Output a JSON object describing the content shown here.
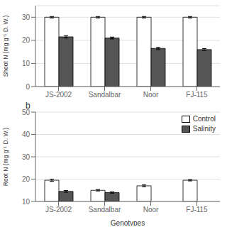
{
  "chart_data": [
    {
      "type": "bar",
      "categories": [
        "JS-2002",
        "Sandalbar",
        "Noor",
        "FJ-115"
      ],
      "series": [
        {
          "name": "Control",
          "color": "#ffffff",
          "values": [
            30,
            30,
            30,
            30
          ],
          "errors": [
            0.3,
            0.3,
            0.3,
            0.3
          ]
        },
        {
          "name": "Salinity",
          "color": "#555555",
          "values": [
            21.5,
            21.0,
            16.5,
            16.0
          ],
          "errors": [
            0.5,
            0.4,
            0.5,
            0.4
          ]
        }
      ],
      "ylabel": "Shoot N (mg g⁻¹ D. W.)",
      "ylim": [
        0,
        35
      ],
      "yticks": [
        0,
        10,
        20,
        30
      ],
      "grid": true
    },
    {
      "type": "bar",
      "categories": [
        "JS-2002",
        "Sandalbar",
        "Noor",
        "FJ-115"
      ],
      "series": [
        {
          "name": "Control",
          "color": "#ffffff",
          "values": [
            19.5,
            15.0,
            17.0,
            19.5
          ],
          "errors": [
            0.5,
            0.3,
            0.4,
            0.3
          ]
        },
        {
          "name": "Salinity",
          "color": "#555555",
          "values": [
            14.5,
            14.0,
            null,
            null
          ],
          "errors": [
            0.4,
            0.3,
            null,
            null
          ]
        }
      ],
      "xlabel": "Genotypes",
      "ylabel": "Root N (mg g⁻¹ D. W.)",
      "ylim": [
        10,
        50
      ],
      "yticks": [
        10,
        20,
        30,
        40,
        50
      ],
      "grid": true,
      "legend": "upper right",
      "annotations": [
        "b"
      ]
    }
  ]
}
